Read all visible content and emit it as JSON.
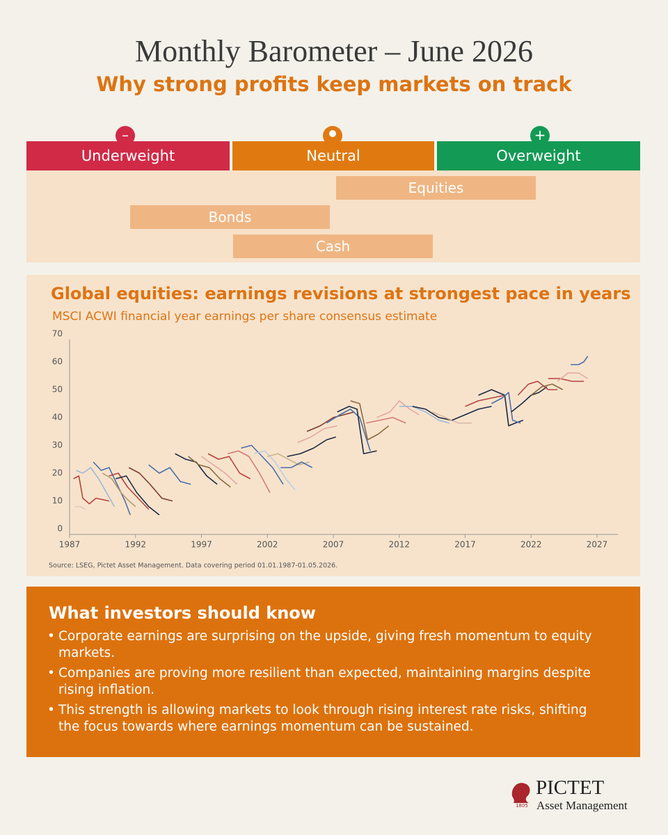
{
  "header": {
    "title": "Monthly Barometer – June 2026",
    "subtitle": "Why strong profits keep markets on track"
  },
  "barometer": {
    "scale": [
      "Underweight",
      "Neutral",
      "Overweight"
    ],
    "assets": [
      "Equities",
      "Bonds",
      "Cash"
    ]
  },
  "chart_data": {
    "type": "line",
    "title": "Global equities: earnings revisions at strongest pace in years",
    "subtitle": "MSCI ACWI financial year earnings per share consensus estimate",
    "source": "Source: LSEG, Pictet Asset Management. Data covering period 01.01.1987-01.05.2026.",
    "xlim": [
      1987,
      2027
    ],
    "xticks": [
      1987,
      1992,
      1997,
      2002,
      2007,
      2012,
      2017,
      2022,
      2027
    ],
    "ylim": [
      0,
      70
    ],
    "yticks": [
      0,
      10,
      20,
      30,
      40,
      50,
      60,
      70
    ],
    "series": [
      {
        "color": "#b5433f",
        "x": [
          1987.3,
          1987.7,
          1988,
          1988.5,
          1989,
          1990
        ],
        "values": [
          20,
          21,
          13,
          11,
          13,
          12
        ]
      },
      {
        "color": "#e0c8c0",
        "x": [
          1987.4,
          1987.8,
          1988.2
        ],
        "values": [
          10,
          10,
          9
        ]
      },
      {
        "color": "#9fb8d6",
        "x": [
          1987.5,
          1988,
          1988.6,
          1989.2,
          1989.8,
          1990.4
        ],
        "values": [
          23,
          22,
          24,
          20,
          15,
          10
        ]
      },
      {
        "color": "#4b6fa8",
        "x": [
          1988.8,
          1989.4,
          1990,
          1990.6,
          1991.2,
          1991.6
        ],
        "values": [
          26,
          23,
          24,
          18,
          12,
          7
        ]
      },
      {
        "color": "#b89a6a",
        "x": [
          1989.5,
          1990.2,
          1990.9,
          1991.5,
          1992
        ],
        "values": [
          22,
          20,
          15,
          12,
          10
        ]
      },
      {
        "color": "#b5433f",
        "x": [
          1990,
          1990.7,
          1991.4,
          1992.2,
          1993
        ],
        "values": [
          21,
          22,
          17,
          13,
          9
        ]
      },
      {
        "color": "#1c2a44",
        "x": [
          1990.5,
          1991.3,
          1992.1,
          1993,
          1993.8
        ],
        "values": [
          20,
          21,
          15,
          10,
          7
        ]
      },
      {
        "color": "#7a3b2e",
        "x": [
          1991.5,
          1992.3,
          1993.1,
          1994,
          1994.8
        ],
        "values": [
          24,
          22,
          18,
          13,
          12
        ]
      },
      {
        "color": "#4b6fa8",
        "x": [
          1993,
          1993.8,
          1994.6,
          1995.4,
          1996.2
        ],
        "values": [
          25,
          22,
          24,
          19,
          18
        ]
      },
      {
        "color": "#1c2a44",
        "x": [
          1995,
          1995.8,
          1996.6,
          1997.4,
          1998.2
        ],
        "values": [
          29,
          27,
          26,
          21,
          18
        ]
      },
      {
        "color": "#8a6a3e",
        "x": [
          1996,
          1996.8,
          1997.6,
          1998.4,
          1999.2
        ],
        "values": [
          28,
          25,
          24,
          20,
          17
        ]
      },
      {
        "color": "#e2a8a4",
        "x": [
          1997,
          1997.9,
          1998.8,
          1999.7
        ],
        "values": [
          28,
          25,
          22,
          18
        ]
      },
      {
        "color": "#b5433f",
        "x": [
          1997.5,
          1998.3,
          1999.1,
          1999.9,
          2000.7
        ],
        "values": [
          29,
          27,
          28,
          22,
          20
        ]
      },
      {
        "color": "#d27a78",
        "x": [
          1999,
          1999.8,
          2000.6,
          2001.4,
          2002.2
        ],
        "values": [
          29,
          30,
          28,
          22,
          15
        ]
      },
      {
        "color": "#4b6fa8",
        "x": [
          2000,
          2000.8,
          2001.6,
          2002.4,
          2003.2
        ],
        "values": [
          31,
          32,
          28,
          24,
          18
        ]
      },
      {
        "color": "#b9cde3",
        "x": [
          2001,
          2001.8,
          2002.6,
          2003.4,
          2004.1
        ],
        "values": [
          29,
          30,
          26,
          20,
          16
        ]
      },
      {
        "color": "#c9b48a",
        "x": [
          2002,
          2002.8,
          2003.6,
          2004.4,
          2005.2
        ],
        "values": [
          28,
          29,
          27,
          25,
          26
        ]
      },
      {
        "color": "#4b6fa8",
        "x": [
          2003,
          2003.8,
          2004.6,
          2005.4
        ],
        "values": [
          24,
          24,
          26,
          24
        ]
      },
      {
        "color": "#1c2a44",
        "x": [
          2003.5,
          2004.5,
          2005.5,
          2006.5,
          2007.2
        ],
        "values": [
          28,
          29,
          31,
          34,
          35
        ]
      },
      {
        "color": "#e2a8a4",
        "x": [
          2004.3,
          2005.3,
          2006.3,
          2007.3
        ],
        "values": [
          33,
          35,
          38,
          39
        ]
      },
      {
        "color": "#7a3b2e",
        "x": [
          2005,
          2006,
          2007,
          2007.8,
          2008.6
        ],
        "values": [
          37,
          39,
          42,
          43,
          44
        ]
      },
      {
        "color": "#4b6fa8",
        "x": [
          2006.5,
          2007.5,
          2008.3,
          2009,
          2009.8
        ],
        "values": [
          40,
          43,
          45,
          42,
          30
        ]
      },
      {
        "color": "#1c2a44",
        "x": [
          2007.3,
          2008.2,
          2008.8,
          2009.3,
          2010.3
        ],
        "values": [
          44,
          46,
          45,
          29,
          30
        ]
      },
      {
        "color": "#8a6a3e",
        "x": [
          2008.3,
          2009,
          2009.6,
          2010.4,
          2011.2
        ],
        "values": [
          48,
          47,
          34,
          36,
          39
        ]
      },
      {
        "color": "#d27a78",
        "x": [
          2009.5,
          2010.5,
          2011.5,
          2012.5
        ],
        "values": [
          40,
          41,
          42,
          40
        ]
      },
      {
        "color": "#e2a8a4",
        "x": [
          2010.3,
          2011.3,
          2012,
          2012.8,
          2013.5
        ],
        "values": [
          42,
          44,
          48,
          45,
          43
        ]
      },
      {
        "color": "#9fb8d6",
        "x": [
          2012,
          2013,
          2014,
          2015,
          2015.8
        ],
        "values": [
          46,
          46,
          44,
          41,
          40
        ]
      },
      {
        "color": "#1c2a44",
        "x": [
          2013,
          2014,
          2015,
          2016
        ],
        "values": [
          46,
          45,
          42,
          41
        ]
      },
      {
        "color": "#d9b8a8",
        "x": [
          2014.5,
          2015.5,
          2016.5,
          2017.5
        ],
        "values": [
          44,
          42,
          40,
          40
        ]
      },
      {
        "color": "#1c2a44",
        "x": [
          2016,
          2017,
          2018,
          2019
        ],
        "values": [
          41,
          43,
          45,
          46
        ]
      },
      {
        "color": "#b5433f",
        "x": [
          2017,
          2018,
          2019,
          2020
        ],
        "values": [
          46,
          48,
          49,
          50
        ]
      },
      {
        "color": "#1c2a44",
        "x": [
          2018,
          2019,
          2020,
          2020.3,
          2020.8,
          2021.4
        ],
        "values": [
          50,
          52,
          50,
          39,
          40,
          41
        ]
      },
      {
        "color": "#4b6fa8",
        "x": [
          2019,
          2019.8,
          2020.3,
          2020.6,
          2021.2
        ],
        "values": [
          47,
          49,
          51,
          41,
          40
        ]
      },
      {
        "color": "#1c2a44",
        "x": [
          2020.5,
          2021.3,
          2022,
          2022.6,
          2023.2
        ],
        "values": [
          44,
          47,
          50,
          51,
          53
        ]
      },
      {
        "color": "#b5433f",
        "x": [
          2021,
          2021.8,
          2022.5,
          2023.3,
          2024
        ],
        "values": [
          50,
          54,
          55,
          52,
          52
        ]
      },
      {
        "color": "#8a6a3e",
        "x": [
          2022,
          2022.8,
          2023.6,
          2024.4
        ],
        "values": [
          50,
          53,
          54,
          52
        ]
      },
      {
        "color": "#b5433f",
        "x": [
          2023.3,
          2024.2,
          2025.1,
          2026
        ],
        "values": [
          56,
          56,
          55,
          55
        ]
      },
      {
        "color": "#e2a8a4",
        "x": [
          2024,
          2024.8,
          2025.6,
          2026.3
        ],
        "values": [
          55,
          58,
          58,
          56
        ]
      },
      {
        "color": "#4b6fa8",
        "x": [
          2025,
          2025.6,
          2026,
          2026.3
        ],
        "values": [
          61,
          61,
          62,
          64
        ]
      }
    ]
  },
  "panel": {
    "heading": "What investors should know",
    "bullets": [
      "Corporate earnings are surprising on the upside, giving fresh momentum to equity markets.",
      "Companies are proving more resilient than expected, maintaining margins despite rising inflation.",
      "This strength is allowing markets to look through rising interest rate risks, shifting the focus towards where earnings momentum can be sustained."
    ]
  },
  "logo": {
    "year": "1805",
    "name": "PICTET",
    "tagline": "Asset Management"
  }
}
